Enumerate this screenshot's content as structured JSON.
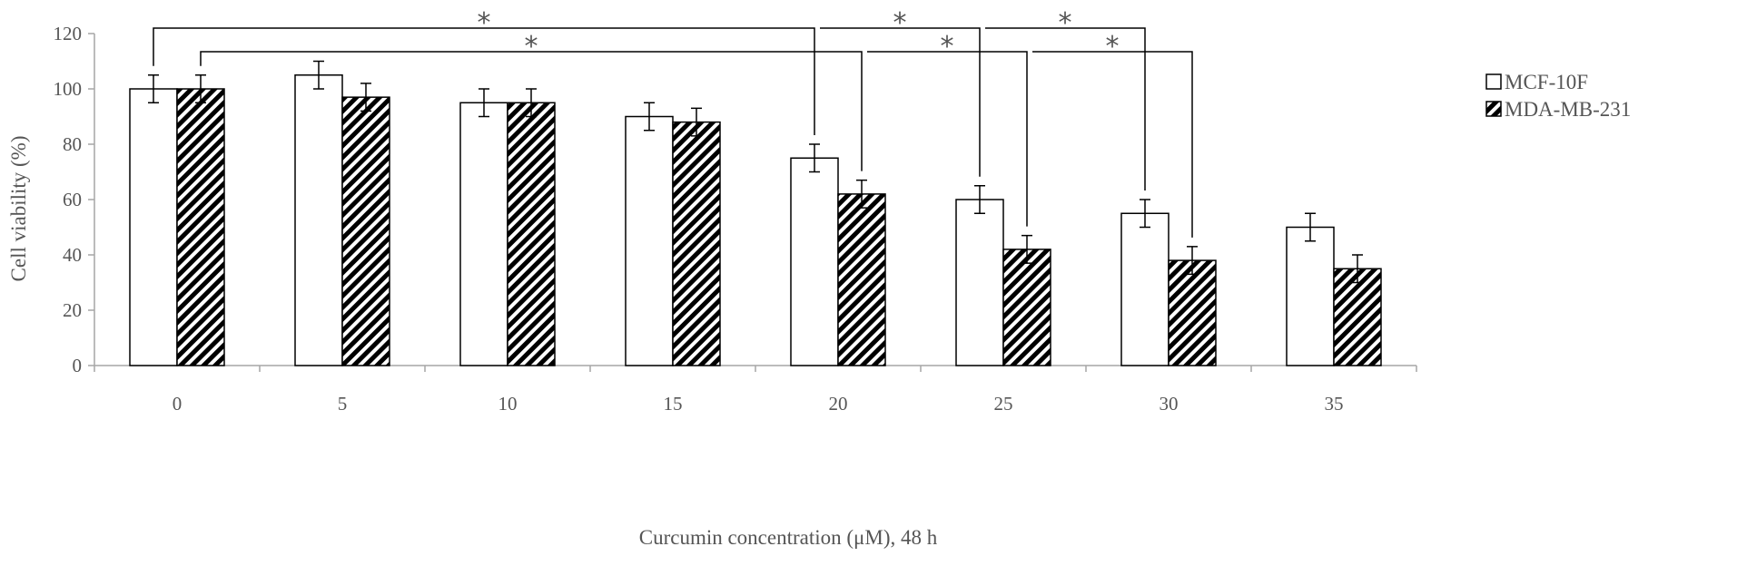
{
  "chart_data": {
    "type": "bar",
    "title": "",
    "xlabel": "Curcumin concentration (μM), 48 h",
    "ylabel": "Cell viability (%)",
    "categories": [
      "0",
      "5",
      "10",
      "15",
      "20",
      "25",
      "30",
      "35"
    ],
    "ylim": [
      0,
      120
    ],
    "yticks": [
      "0",
      "20",
      "40",
      "60",
      "80",
      "100",
      "120"
    ],
    "grid": false,
    "legend_position": "right",
    "series": [
      {
        "name": "MCF-10F",
        "pattern": "open",
        "values": [
          100,
          105,
          95,
          90,
          75,
          60,
          55,
          50
        ],
        "errors": [
          5,
          5,
          5,
          5,
          5,
          5,
          5,
          5
        ]
      },
      {
        "name": "MDA-MB-231",
        "pattern": "hatched",
        "values": [
          100,
          97,
          95,
          88,
          62,
          42,
          38,
          35
        ],
        "errors": [
          5,
          5,
          5,
          5,
          5,
          5,
          5,
          5
        ]
      }
    ],
    "significance": [
      {
        "from_category": "0",
        "from_series": 0,
        "to_category": "20",
        "to_series": 0,
        "label": "*"
      },
      {
        "from_category": "0",
        "from_series": 1,
        "to_category": "20",
        "to_series": 1,
        "label": "*"
      },
      {
        "from_category": "20",
        "from_series": 0,
        "to_category": "25",
        "to_series": 0,
        "label": "*"
      },
      {
        "from_category": "20",
        "from_series": 1,
        "to_category": "25",
        "to_series": 1,
        "label": "*"
      },
      {
        "from_category": "25",
        "from_series": 0,
        "to_category": "30",
        "to_series": 0,
        "label": "*"
      },
      {
        "from_category": "25",
        "from_series": 1,
        "to_category": "30",
        "to_series": 1,
        "label": "*"
      }
    ],
    "colors": {
      "axis": "#a6a6a6",
      "bar_stroke": "#000000",
      "open_fill": "#ffffff",
      "hatch": "#000000",
      "text": "#555555",
      "bracket": "#000000"
    }
  }
}
